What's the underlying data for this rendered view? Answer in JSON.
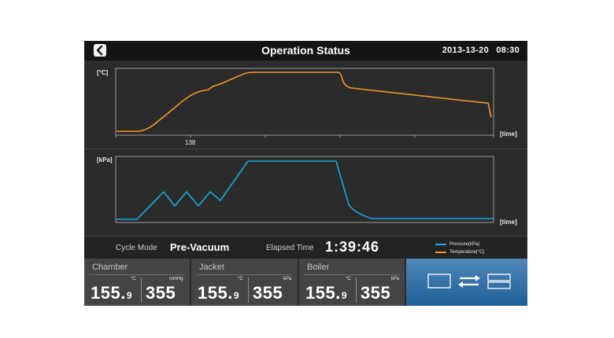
{
  "header": {
    "title": "Operation Status",
    "date": "2013-13-20",
    "time": "08:30"
  },
  "temperature_chart": {
    "unit_label": "[°C]",
    "time_label": "[time]",
    "marker_label": "138"
  },
  "pressure_chart": {
    "unit_label": "[kPa]",
    "time_label": "[time]"
  },
  "status": {
    "cycle_mode_label": "Cycle Mode",
    "cycle_mode_value": "Pre-Vacuum",
    "elapsed_label": "Elapsed Time",
    "elapsed_value": "1:39:46"
  },
  "legend": [
    {
      "label": "Pressure(kPa)",
      "color": "#1aa7e0"
    },
    {
      "label": "Temperature(°C)",
      "color": "#f0962a"
    }
  ],
  "cards": {
    "chamber": {
      "title": "Chamber",
      "temp_unit": "°C",
      "pressure_unit": "mmHg",
      "temp_int": "155.",
      "temp_dec": "9",
      "pressure": "355"
    },
    "jacket": {
      "title": "Jacket",
      "temp_unit": "°C",
      "pressure_unit": "kPa",
      "temp_int": "155.",
      "temp_dec": "9",
      "pressure": "355"
    },
    "boiler": {
      "title": "Boiler",
      "temp_unit": "°C",
      "pressure_unit": "kPa",
      "temp_int": "155.",
      "temp_dec": "9",
      "pressure": "355"
    }
  },
  "colors": {
    "temperature_line": "#f0962a",
    "pressure_line": "#1aa7e0",
    "switch_button": "#2f6fa8"
  },
  "icons": {
    "back": "chevron-left-icon",
    "switch": "swap-view-icon"
  }
}
